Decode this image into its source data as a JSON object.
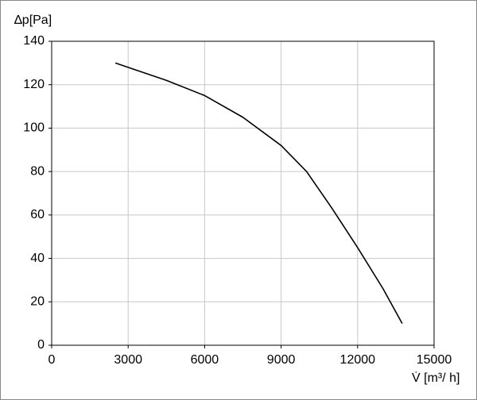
{
  "chart_data": {
    "type": "line",
    "y_label": "∆p[Pa]",
    "x_label": "V̇ [m³/ h]",
    "x": [
      2500,
      3000,
      4500,
      6000,
      7500,
      9000,
      10000,
      11000,
      12000,
      13000,
      13750
    ],
    "series": [
      {
        "color": "#000000",
        "values": [
          130,
          128,
          122,
          115,
          105,
          92,
          80,
          63,
          45,
          26,
          10
        ]
      }
    ],
    "xlim": [
      0,
      15000
    ],
    "xticks": [
      0,
      3000,
      6000,
      9000,
      12000,
      15000
    ],
    "ylim": [
      0,
      140
    ],
    "yticks": [
      0,
      20,
      40,
      60,
      80,
      100,
      120,
      140
    ],
    "grid": true
  }
}
